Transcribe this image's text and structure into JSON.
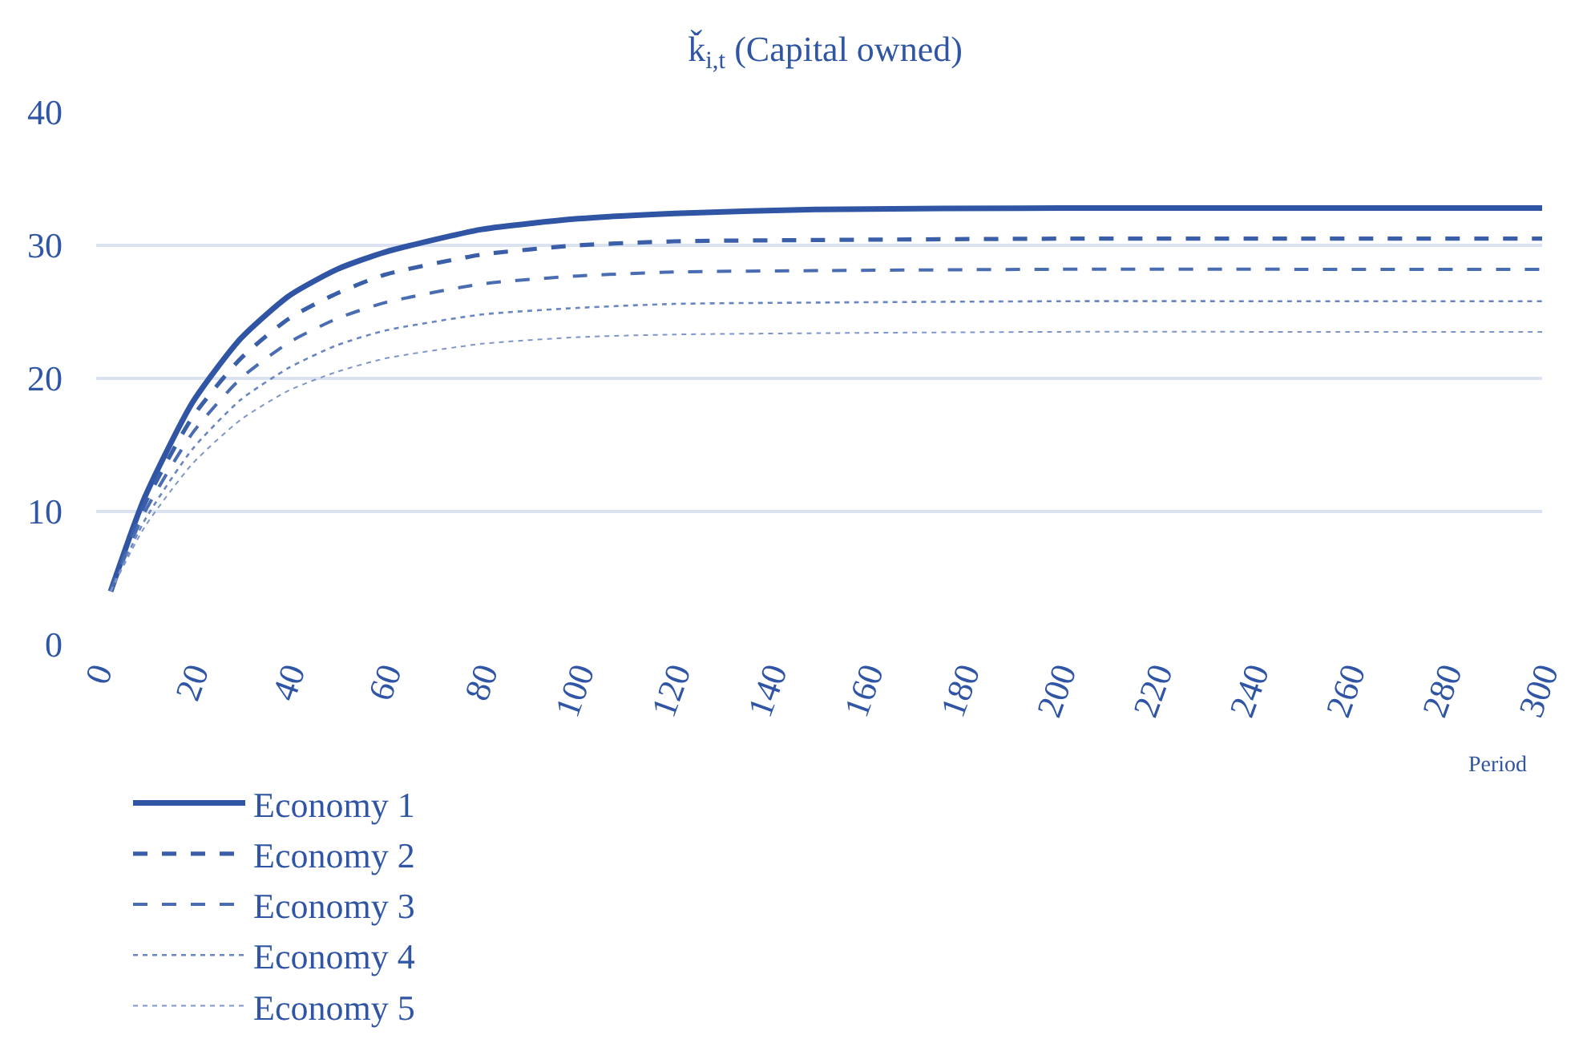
{
  "chart_data": {
    "type": "line",
    "title": "ǩ$_{i,t}$ (Capital owned)",
    "xlabel": "Period",
    "x": [
      3,
      10,
      20,
      30,
      40,
      50,
      60,
      80,
      100,
      120,
      150,
      200,
      250,
      300
    ],
    "series": [
      {
        "name": "Economy 1",
        "color": "#2f55a4",
        "line_style": "solid",
        "values": [
          4.0,
          11.0,
          18.2,
          23.0,
          26.2,
          28.2,
          29.5,
          31.2,
          32.0,
          32.4,
          32.7,
          32.8,
          32.8,
          32.8
        ]
      },
      {
        "name": "Economy 2",
        "color": "#3a5fa8",
        "line_style": "dashed",
        "values": [
          4.0,
          10.5,
          17.1,
          21.5,
          24.5,
          26.4,
          27.8,
          29.3,
          30.0,
          30.3,
          30.4,
          30.5,
          30.5,
          30.5
        ]
      },
      {
        "name": "Economy 3",
        "color": "#4a6cb0",
        "line_style": "dashed",
        "values": [
          4.0,
          9.9,
          15.9,
          20.0,
          22.7,
          24.5,
          25.7,
          27.1,
          27.7,
          28.0,
          28.1,
          28.2,
          28.2,
          28.2
        ]
      },
      {
        "name": "Economy 4",
        "color": "#6a86c0",
        "line_style": "dotted",
        "values": [
          4.0,
          9.3,
          14.7,
          18.4,
          20.8,
          22.5,
          23.6,
          24.8,
          25.3,
          25.6,
          25.7,
          25.8,
          25.8,
          25.8
        ]
      },
      {
        "name": "Economy 5",
        "color": "#7f96c8",
        "line_style": "dotted",
        "values": [
          4.0,
          8.8,
          13.6,
          16.9,
          19.1,
          20.5,
          21.5,
          22.6,
          23.1,
          23.3,
          23.4,
          23.5,
          23.5,
          23.5
        ]
      }
    ],
    "xlim": [
      0,
      300
    ],
    "xticks": [
      0,
      20,
      40,
      60,
      80,
      100,
      120,
      140,
      160,
      180,
      200,
      220,
      240,
      260,
      280,
      300
    ],
    "ylim": [
      0,
      40
    ],
    "yticks": [
      0,
      10,
      20,
      30,
      40
    ],
    "grid": "y",
    "legend": "bottom",
    "marker": "none"
  }
}
